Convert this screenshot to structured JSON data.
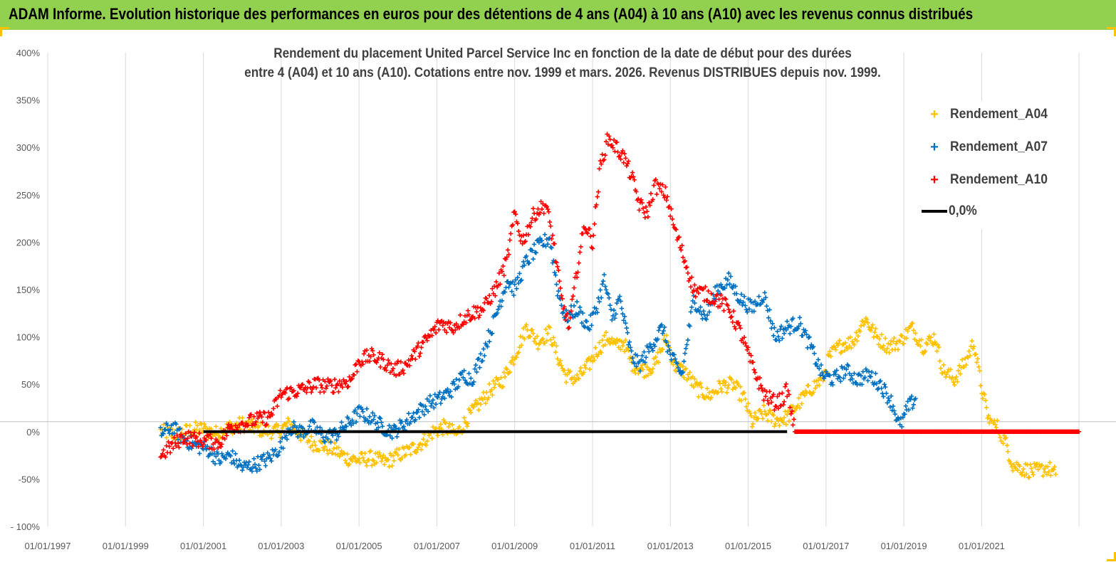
{
  "header": {
    "title": "ADAM Informe. Evolution historique des performances en euros pour des détentions de 4 ans (A04) à 10 ans (A10) avec les revenus connus distribués"
  },
  "chart_data": {
    "type": "scatter",
    "title": "Rendement du placement United Parcel Service Inc en fonction de la date de début pour des durées entre 4 (A04) et 10 ans (A10). Cotations entre nov. 1999 et mars. 2026. Revenus DISTRIBUES depuis nov. 1999.",
    "title_lines": [
      "Rendement du placement United Parcel Service Inc en fonction de la date de début pour des durées",
      "entre 4 (A04) et 10 ans (A10). Cotations entre nov. 1999 et mars. 2026. Revenus DISTRIBUES depuis nov. 1999."
    ],
    "xlabel": "",
    "ylabel": "",
    "xlim": [
      1997.0,
      2023.6
    ],
    "ylim": [
      -100,
      400
    ],
    "x_ticks": [
      1997,
      1999,
      2001,
      2003,
      2005,
      2007,
      2009,
      2011,
      2013,
      2015,
      2017,
      2019,
      2021
    ],
    "x_tick_labels": [
      "01/01/1997",
      "01/01/1999",
      "01/01/2001",
      "01/01/2003",
      "01/01/2005",
      "01/01/2007",
      "01/01/2009",
      "01/01/2011",
      "01/01/2013",
      "01/01/2015",
      "01/01/2017",
      "01/01/2019",
      "01/01/2021"
    ],
    "y_ticks": [
      -100,
      -50,
      0,
      50,
      100,
      150,
      200,
      250,
      300,
      350,
      400
    ],
    "y_tick_labels": [
      "- 100%",
      "-50%",
      "0%",
      "50%",
      "100%",
      "150%",
      "200%",
      "250%",
      "300%",
      "350%",
      "400%"
    ],
    "grid": "vertical",
    "legend_position": "top-right",
    "series": [
      {
        "name": "Rendement_A04",
        "color": "#ffc000",
        "marker": "+",
        "points": [
          [
            1999.9,
            0
          ],
          [
            2000.3,
            -3
          ],
          [
            2000.7,
            2
          ],
          [
            2001.0,
            3
          ],
          [
            2001.3,
            -2
          ],
          [
            2001.7,
            5
          ],
          [
            2002.0,
            8
          ],
          [
            2002.5,
            2
          ],
          [
            2002.9,
            0
          ],
          [
            2003.2,
            8
          ],
          [
            2003.5,
            -3
          ],
          [
            2003.8,
            -12
          ],
          [
            2004.1,
            -15
          ],
          [
            2004.4,
            -20
          ],
          [
            2004.7,
            -28
          ],
          [
            2005.0,
            -30
          ],
          [
            2005.3,
            -28
          ],
          [
            2005.7,
            -32
          ],
          [
            2006.0,
            -25
          ],
          [
            2006.3,
            -20
          ],
          [
            2006.6,
            -12
          ],
          [
            2006.9,
            0
          ],
          [
            2007.2,
            5
          ],
          [
            2007.5,
            -3
          ],
          [
            2007.8,
            15
          ],
          [
            2008.1,
            30
          ],
          [
            2008.4,
            45
          ],
          [
            2008.7,
            55
          ],
          [
            2009.0,
            80
          ],
          [
            2009.3,
            110
          ],
          [
            2009.6,
            95
          ],
          [
            2009.9,
            105
          ],
          [
            2010.1,
            80
          ],
          [
            2010.3,
            60
          ],
          [
            2010.6,
            55
          ],
          [
            2010.9,
            70
          ],
          [
            2011.1,
            85
          ],
          [
            2011.4,
            100
          ],
          [
            2011.6,
            90
          ],
          [
            2011.8,
            95
          ],
          [
            2012.0,
            72
          ],
          [
            2012.3,
            65
          ],
          [
            2012.6,
            70
          ],
          [
            2012.9,
            100
          ],
          [
            2013.1,
            70
          ],
          [
            2013.4,
            62
          ],
          [
            2013.7,
            45
          ],
          [
            2014.0,
            38
          ],
          [
            2014.3,
            48
          ],
          [
            2014.6,
            50
          ],
          [
            2014.9,
            35
          ],
          [
            2015.1,
            10
          ],
          [
            2015.4,
            20
          ],
          [
            2015.7,
            12
          ],
          [
            2016.0,
            15
          ],
          [
            2016.3,
            30
          ],
          [
            2016.6,
            45
          ],
          [
            2016.9,
            55
          ],
          [
            2017.1,
            80
          ],
          [
            2017.4,
            92
          ],
          [
            2017.7,
            95
          ],
          [
            2018.0,
            120
          ],
          [
            2018.3,
            100
          ],
          [
            2018.6,
            90
          ],
          [
            2018.9,
            95
          ],
          [
            2019.2,
            110
          ],
          [
            2019.5,
            90
          ],
          [
            2019.8,
            100
          ],
          [
            2020.0,
            65
          ],
          [
            2020.3,
            55
          ],
          [
            2020.6,
            75
          ],
          [
            2020.8,
            95
          ],
          [
            2021.0,
            45
          ],
          [
            2021.2,
            10
          ],
          [
            2021.4,
            5
          ],
          [
            2021.6,
            -10
          ],
          [
            2021.8,
            -35
          ],
          [
            2022.1,
            -40
          ],
          [
            2022.4,
            -42
          ],
          [
            2022.7,
            -38
          ],
          [
            2022.9,
            -45
          ]
        ]
      },
      {
        "name": "Rendement_A07",
        "color": "#0070c0",
        "marker": "+",
        "points": [
          [
            1999.9,
            -2
          ],
          [
            2000.2,
            5
          ],
          [
            2000.5,
            -8
          ],
          [
            2000.8,
            -15
          ],
          [
            2001.1,
            -18
          ],
          [
            2001.4,
            -30
          ],
          [
            2001.7,
            -25
          ],
          [
            2002.0,
            -38
          ],
          [
            2002.3,
            -35
          ],
          [
            2002.7,
            -28
          ],
          [
            2003.0,
            -15
          ],
          [
            2003.2,
            5
          ],
          [
            2003.5,
            0
          ],
          [
            2003.8,
            5
          ],
          [
            2004.1,
            -5
          ],
          [
            2004.4,
            -3
          ],
          [
            2004.7,
            8
          ],
          [
            2005.0,
            20
          ],
          [
            2005.3,
            15
          ],
          [
            2005.6,
            5
          ],
          [
            2005.9,
            0
          ],
          [
            2006.2,
            10
          ],
          [
            2006.5,
            20
          ],
          [
            2006.8,
            30
          ],
          [
            2007.1,
            35
          ],
          [
            2007.4,
            45
          ],
          [
            2007.7,
            60
          ],
          [
            2007.9,
            55
          ],
          [
            2008.2,
            85
          ],
          [
            2008.5,
            120
          ],
          [
            2008.8,
            160
          ],
          [
            2009.0,
            150
          ],
          [
            2009.3,
            180
          ],
          [
            2009.6,
            195
          ],
          [
            2009.9,
            205
          ],
          [
            2010.1,
            150
          ],
          [
            2010.3,
            120
          ],
          [
            2010.6,
            130
          ],
          [
            2010.9,
            110
          ],
          [
            2011.1,
            130
          ],
          [
            2011.3,
            160
          ],
          [
            2011.5,
            120
          ],
          [
            2011.7,
            140
          ],
          [
            2012.0,
            80
          ],
          [
            2012.2,
            70
          ],
          [
            2012.5,
            90
          ],
          [
            2012.8,
            110
          ],
          [
            2013.0,
            80
          ],
          [
            2013.3,
            60
          ],
          [
            2013.6,
            140
          ],
          [
            2013.9,
            120
          ],
          [
            2014.2,
            150
          ],
          [
            2014.5,
            160
          ],
          [
            2014.8,
            140
          ],
          [
            2015.1,
            130
          ],
          [
            2015.4,
            145
          ],
          [
            2015.7,
            100
          ],
          [
            2016.0,
            110
          ],
          [
            2016.3,
            115
          ],
          [
            2016.6,
            90
          ],
          [
            2016.9,
            60
          ],
          [
            2017.2,
            55
          ],
          [
            2017.5,
            65
          ],
          [
            2017.8,
            55
          ],
          [
            2018.1,
            60
          ],
          [
            2018.4,
            50
          ],
          [
            2018.7,
            30
          ],
          [
            2018.9,
            5
          ],
          [
            2019.1,
            25
          ],
          [
            2019.3,
            35
          ]
        ]
      },
      {
        "name": "Rendement_A10",
        "color": "#ff0000",
        "marker": "+",
        "points": [
          [
            1999.9,
            -25
          ],
          [
            2000.2,
            -15
          ],
          [
            2000.5,
            -5
          ],
          [
            2000.8,
            -8
          ],
          [
            2001.1,
            -10
          ],
          [
            2001.4,
            -12
          ],
          [
            2001.7,
            5
          ],
          [
            2002.0,
            8
          ],
          [
            2002.3,
            12
          ],
          [
            2002.7,
            15
          ],
          [
            2003.0,
            40
          ],
          [
            2003.3,
            42
          ],
          [
            2003.6,
            45
          ],
          [
            2003.9,
            50
          ],
          [
            2004.2,
            48
          ],
          [
            2004.5,
            50
          ],
          [
            2004.8,
            55
          ],
          [
            2005.0,
            75
          ],
          [
            2005.3,
            80
          ],
          [
            2005.6,
            75
          ],
          [
            2005.9,
            65
          ],
          [
            2006.2,
            70
          ],
          [
            2006.5,
            85
          ],
          [
            2006.8,
            100
          ],
          [
            2007.1,
            115
          ],
          [
            2007.4,
            110
          ],
          [
            2007.7,
            120
          ],
          [
            2007.9,
            125
          ],
          [
            2008.2,
            130
          ],
          [
            2008.5,
            150
          ],
          [
            2008.8,
            180
          ],
          [
            2009.0,
            230
          ],
          [
            2009.2,
            200
          ],
          [
            2009.5,
            230
          ],
          [
            2009.8,
            240
          ],
          [
            2010.0,
            200
          ],
          [
            2010.2,
            140
          ],
          [
            2010.4,
            110
          ],
          [
            2010.6,
            170
          ],
          [
            2010.8,
            220
          ],
          [
            2011.0,
            200
          ],
          [
            2011.2,
            280
          ],
          [
            2011.4,
            310
          ],
          [
            2011.6,
            300
          ],
          [
            2011.8,
            290
          ],
          [
            2012.0,
            270
          ],
          [
            2012.2,
            240
          ],
          [
            2012.4,
            230
          ],
          [
            2012.6,
            260
          ],
          [
            2012.9,
            250
          ],
          [
            2013.1,
            215
          ],
          [
            2013.3,
            190
          ],
          [
            2013.6,
            150
          ],
          [
            2013.9,
            145
          ],
          [
            2014.2,
            140
          ],
          [
            2014.5,
            130
          ],
          [
            2014.8,
            105
          ],
          [
            2015.1,
            70
          ],
          [
            2015.4,
            40
          ],
          [
            2015.7,
            30
          ],
          [
            2015.9,
            35
          ],
          [
            2016.0,
            45
          ],
          [
            2016.2,
            0
          ],
          [
            2017.0,
            0
          ],
          [
            2018.0,
            0
          ],
          [
            2019.0,
            0
          ],
          [
            2020.0,
            0
          ],
          [
            2021.0,
            0
          ],
          [
            2022.0,
            0
          ],
          [
            2023.5,
            0
          ]
        ]
      },
      {
        "name": "0,0%",
        "color": "#000000",
        "type": "line",
        "points": [
          [
            2001.0,
            0
          ],
          [
            2016.0,
            0
          ]
        ]
      }
    ]
  },
  "legend": {
    "items": [
      {
        "label": "Rendement_A04",
        "color": "#ffc000",
        "symbol": "+"
      },
      {
        "label": "Rendement_A07",
        "color": "#0070c0",
        "symbol": "+"
      },
      {
        "label": "Rendement_A10",
        "color": "#ff0000",
        "symbol": "+"
      },
      {
        "label": "0,0%",
        "color": "#000000",
        "symbol": "line"
      }
    ]
  },
  "colors": {
    "header_bg": "#92d050",
    "corner": "#ffc000",
    "axis_text": "#595959",
    "grid": "#d9d9d9"
  }
}
